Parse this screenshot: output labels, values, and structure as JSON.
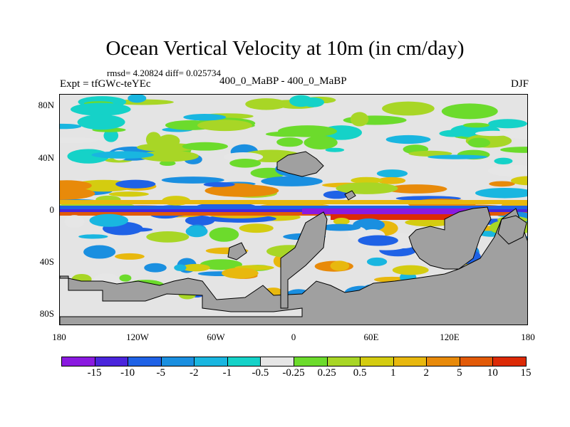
{
  "title": "Ocean Vertical Velocity at 10m (in cm/day)",
  "stats": "rmsd= 4.20824 diff= 0.025734",
  "expt": "Expt = tfGWc-teYEc",
  "case": "400_0_MaBP - 400_0_MaBP",
  "season": "DJF",
  "colors": {
    "land": "#a0a0a0",
    "levels": [
      "#8a1ae0",
      "#4a25dc",
      "#1f62e6",
      "#1a8fe0",
      "#19b6e0",
      "#15d2c8",
      "#e6e6e6",
      "#6cdb2c",
      "#a8d626",
      "#d4cc10",
      "#e8b80e",
      "#e88a0a",
      "#e25a08",
      "#dc2a06"
    ]
  },
  "map": {
    "lat_ticks": [
      "80N",
      "40N",
      "0",
      "40S",
      "80S"
    ],
    "lon_ticks": [
      "180",
      "120W",
      "60W",
      "0",
      "60E",
      "120E",
      "180"
    ]
  },
  "colorbar": {
    "labels": [
      "-15",
      "-10",
      "-5",
      "-2",
      "-1",
      "-0.5",
      "-0.25",
      "0.25",
      "0.5",
      "1",
      "2",
      "5",
      "10",
      "15"
    ]
  },
  "chart_data": {
    "type": "heatmap",
    "title": "Ocean Vertical Velocity at 10m (in cm/day)",
    "variable": "ocean vertical velocity difference at 10m",
    "units": "cm/day",
    "x_range_deg_lon": [
      -180,
      180
    ],
    "y_range_deg_lat": [
      -90,
      90
    ],
    "contour_levels": [
      -15,
      -10,
      -5,
      -2,
      -1,
      -0.5,
      -0.25,
      0.25,
      0.5,
      1,
      2,
      5,
      10,
      15
    ]
  }
}
